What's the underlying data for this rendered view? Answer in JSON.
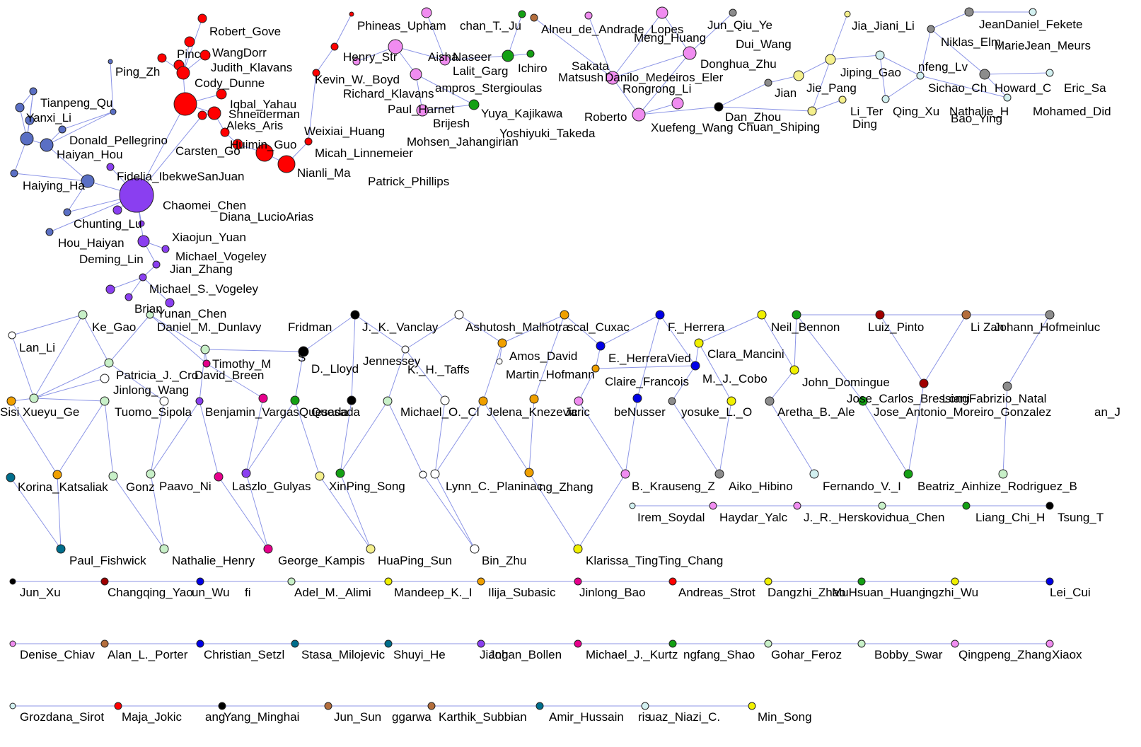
{
  "colors": {
    "edge": "#8c95e6",
    "node_stroke": "#222222",
    "label": "#000000",
    "clusters": {
      "slateblue": "#5a6fc4",
      "red": "#ff0000",
      "violet": "#8a3ff0",
      "pink": "#f08cf0",
      "green": "#14a014",
      "gray": "#8c8c8c",
      "lightyellow": "#f5f08c",
      "lightcyan": "#d2f0f0",
      "lightgreen": "#c8f0c8",
      "orange": "#f0a000",
      "yellow": "#f0f000",
      "blue": "#0000e6",
      "magenta": "#e6008c",
      "black": "#000000",
      "white": "#ffffff",
      "teal": "#006e8c",
      "brown": "#b46e3c",
      "darkred": "#a00000"
    }
  },
  "labels": [
    "Robert_Gove",
    "Ping_Zh",
    "Pinc",
    "WangDorr",
    "Judith_Klavans",
    "Cody_Dunne",
    "Iqbal_Yahau",
    "Shneiderman",
    "Aleks_Aris",
    "Tianpeng_Qu",
    "Yanxi_Li",
    "Donald_Pellegrino",
    "Haiyan_Hou",
    "Haiying_Ha",
    "Carsten_Go",
    "Huimin_Guo",
    "Weixiai_Huang",
    "Micah_Linnemeier",
    "Nianli_Ma",
    "Fidelia_IbekweSanJuan",
    "Chaomei_Chen",
    "Chunting_Lu",
    "Diana_LucioArias",
    "Xiaojun_Yuan",
    "Hou_Haiyan",
    "Michael_Vogeley",
    "Deming_Lin",
    "Jian_Zhang",
    "Michael_S._Vogeley",
    "Brian",
    "Yunan_Chen",
    "Phineas_Upham",
    "chan_T._Ju",
    "Alneu_de_Andrade_Lopes",
    "Jun_Qiu_Ye",
    "Meng_Huang",
    "Dui_Wang",
    "Henry_Str",
    "Aisha",
    "Naseer",
    "Kevin_W._Boyd",
    "Lalit_Garg",
    "Ichiro",
    "Sakata",
    "Matsush",
    "Danilo_Medeiros_Eler",
    "Richard_Klavans",
    "ampros_Stergioulas",
    "Rongrong_Li",
    "Paul_Harnet",
    "Brijesh",
    "Yuya_Kajikawa",
    "Roberto",
    "Mohsen_Jahangirian",
    "Yoshiyuki_Takeda",
    "Patrick_Phillips",
    "Donghua_Zhu",
    "Dan_Zhou",
    "Xuefeng_Wang",
    "Chuan_Shiping",
    "Jian",
    "Jie_Pang",
    "Ding",
    "Jia_Jiani_Li",
    "JeanDaniel_Fekete",
    "Niklas_Elm",
    "MarieJean_Meurs",
    "Jiping_Gao",
    "nfeng_Lv",
    "Sichao_Ch",
    "Howard_C",
    "Eric_Sa",
    "Li_Ter",
    "Qing_Xu",
    "Nathalie_H",
    "Mohamed_Did",
    "Bao_Ying",
    "Ke_Gao",
    "Daniel_M._Dunlavy",
    "Fridman",
    "J._K._Vanclay",
    "Ashutosh_Malhotra",
    "scal_Cuxac",
    "F._Herrera",
    "Neil_Bennon",
    "Luiz_Pinto",
    "Li",
    "Zan",
    "Johann_Hofmeinluc",
    "Lan_Li",
    "Timothy_M",
    "S",
    "D._Lloyd",
    "Jennessey",
    "K._H._Taffs",
    "Amos_David",
    "E._HerreraVied",
    "Clara_Mancini",
    "Patricia_J._Cro",
    "David_Breen",
    "Martin_Hofmann",
    "Claire_Francois",
    "M._J._Cobo",
    "John_Domingue",
    "Jinlong_Wang",
    "Jose_Carlos_Bressiani",
    "LongFabrizio_Natal",
    "Sisi",
    "Xueyu_Ge",
    "Tuomo_Sipola",
    "Benjamin_VargasQuesada",
    "Quesada",
    "Michael_O._Cl",
    "Jelena_Knezevic",
    "Jaric",
    "beNusser",
    "yosuke_L._O",
    "Aretha_B._Ale",
    "Jose_Antonio_Moreiro_Gonzalez",
    "an_J",
    "Korina_Katsaliak",
    "Gonz",
    "Paavo_Ni",
    "Laszlo_Gulyas",
    "XinPing_Song",
    "Lynn_C._Planinac",
    "ng_Zhang",
    "B._Krause",
    "ng_Z",
    "Aiko_Hibino",
    "Fernando_V._I",
    "Beatriz_Ainhize_Rodriguez_B",
    "Irem_Soydal",
    "Haydar_Yalc",
    "J._R._Herskovic",
    "hua_Chen",
    "Liang_Chi_H",
    "Tsung_T",
    "Paul_Fishwick",
    "Nathalie_Henry",
    "George_Kampis",
    "HuaPing_Sun",
    "Bin_Zhu",
    "Klarissa_TingTing_Chang",
    "Jun_Xu",
    "Changqing_Yao",
    "un_Wu",
    "fi",
    "Adel_M._Alimi",
    "Mandeep_K._I",
    "Ilija_Subasic",
    "Jinlong_Bao",
    "Andreas_Strot",
    "Dangzhi_Zhao",
    "MuHsuan_Huang",
    "ingzhi_Wu",
    "Lei_Cui",
    "Denise_Chiav",
    "Alan_L._Porter",
    "Christian_Setzl",
    "Stasa_Milojevic",
    "Shuyi_He",
    "Jiang",
    "Johan_Bollen",
    "Michael_J._Kurtz",
    "ngfang_Shao",
    "Gohar_Feroz",
    "Bobby_Swar",
    "Qingpeng_Zhang",
    "Xiaox",
    "Grozdana_Sirot",
    "Maja_Jokic",
    "ang",
    "Yang_Minghai",
    "Jun_Sun",
    "ggarwa",
    "Karthik_Subbian",
    "Amir_Hussain",
    "ris",
    "uaz_Niazi_C.",
    "Min_Song"
  ]
}
